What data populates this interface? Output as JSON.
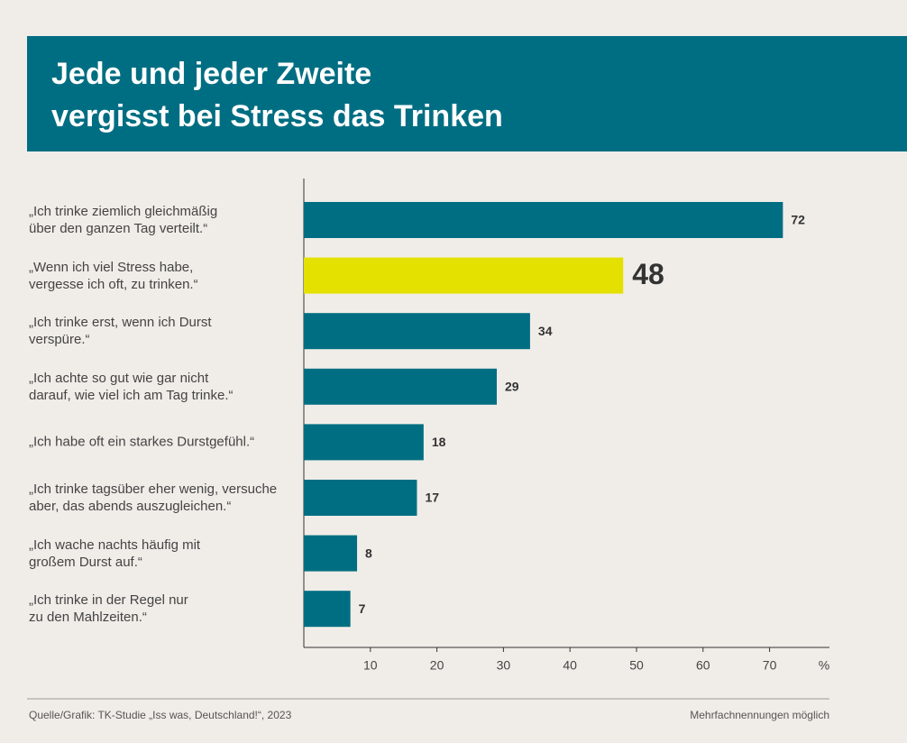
{
  "chart_data": {
    "type": "bar",
    "orientation": "horizontal",
    "title": [
      "Jede und jeder Zweite",
      "vergisst bei Stress das Trinken"
    ],
    "categories": [
      "„Ich trinke ziemlich gleichmäßig\nüber den ganzen Tag verteilt.“",
      "„Wenn ich viel Stress habe,\nvergesse ich oft, zu trinken.“",
      "„Ich trinke erst, wenn ich Durst\nverspüre.“",
      "„Ich achte so gut wie gar nicht\ndarauf, wie viel ich am Tag trinke.“",
      "„Ich habe oft ein starkes Durstgefühl.“",
      "„Ich trinke tagsüber eher wenig, versuche\naber, das abends auszugleichen.“",
      "„Ich wache nachts häufig mit\ngroßem Durst auf.“",
      "„Ich trinke in der Regel nur\nzu den Mahlzeiten.“"
    ],
    "values": [
      72,
      48,
      34,
      29,
      18,
      17,
      8,
      7
    ],
    "color": "#006e82",
    "colors": [
      "#006e82",
      "#e4e000",
      "#006e82",
      "#006e82",
      "#006e82",
      "#006e82",
      "#006e82",
      "#006e82"
    ],
    "xlim": [
      0,
      79
    ],
    "xticks": [
      10,
      20,
      30,
      40,
      50,
      60,
      70
    ],
    "x_label": "%",
    "source": "Quelle/Grafik: TK-Studie „Iss was, Deutschland!“, 2023",
    "note": "Mehrfachnennungen möglich"
  }
}
